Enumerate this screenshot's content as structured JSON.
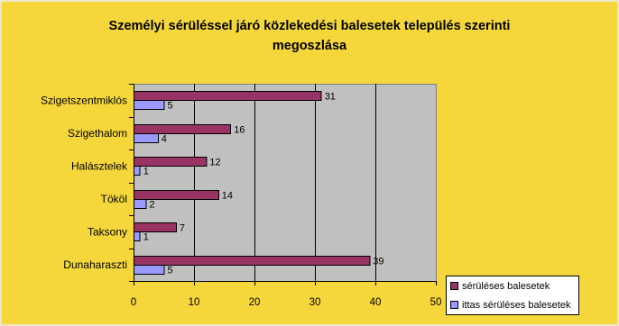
{
  "chart_data": {
    "type": "bar",
    "orientation": "horizontal",
    "title": "Személyi sérüléssel járó közlekedési balesetek település szerinti megoszlása",
    "categories": [
      "Szigetszentmiklós",
      "Szigethalom",
      "Halásztelek",
      "Tököl",
      "Taksony",
      "Dunaharaszti"
    ],
    "series": [
      {
        "name": "sérüléses balesetek",
        "values": [
          31,
          16,
          12,
          14,
          7,
          39
        ],
        "color": "#993366"
      },
      {
        "name": "ittas sérüléses balesetek",
        "values": [
          5,
          4,
          1,
          2,
          1,
          5
        ],
        "color": "#9999FF"
      }
    ],
    "xlim": [
      0,
      50
    ],
    "x_ticks": [
      0,
      10,
      20,
      30,
      40,
      50
    ],
    "grid": true,
    "data_labels": true,
    "legend": "bottom-right",
    "background_color": "#F5D73C",
    "plot_background_color": "#C0C0C0"
  }
}
